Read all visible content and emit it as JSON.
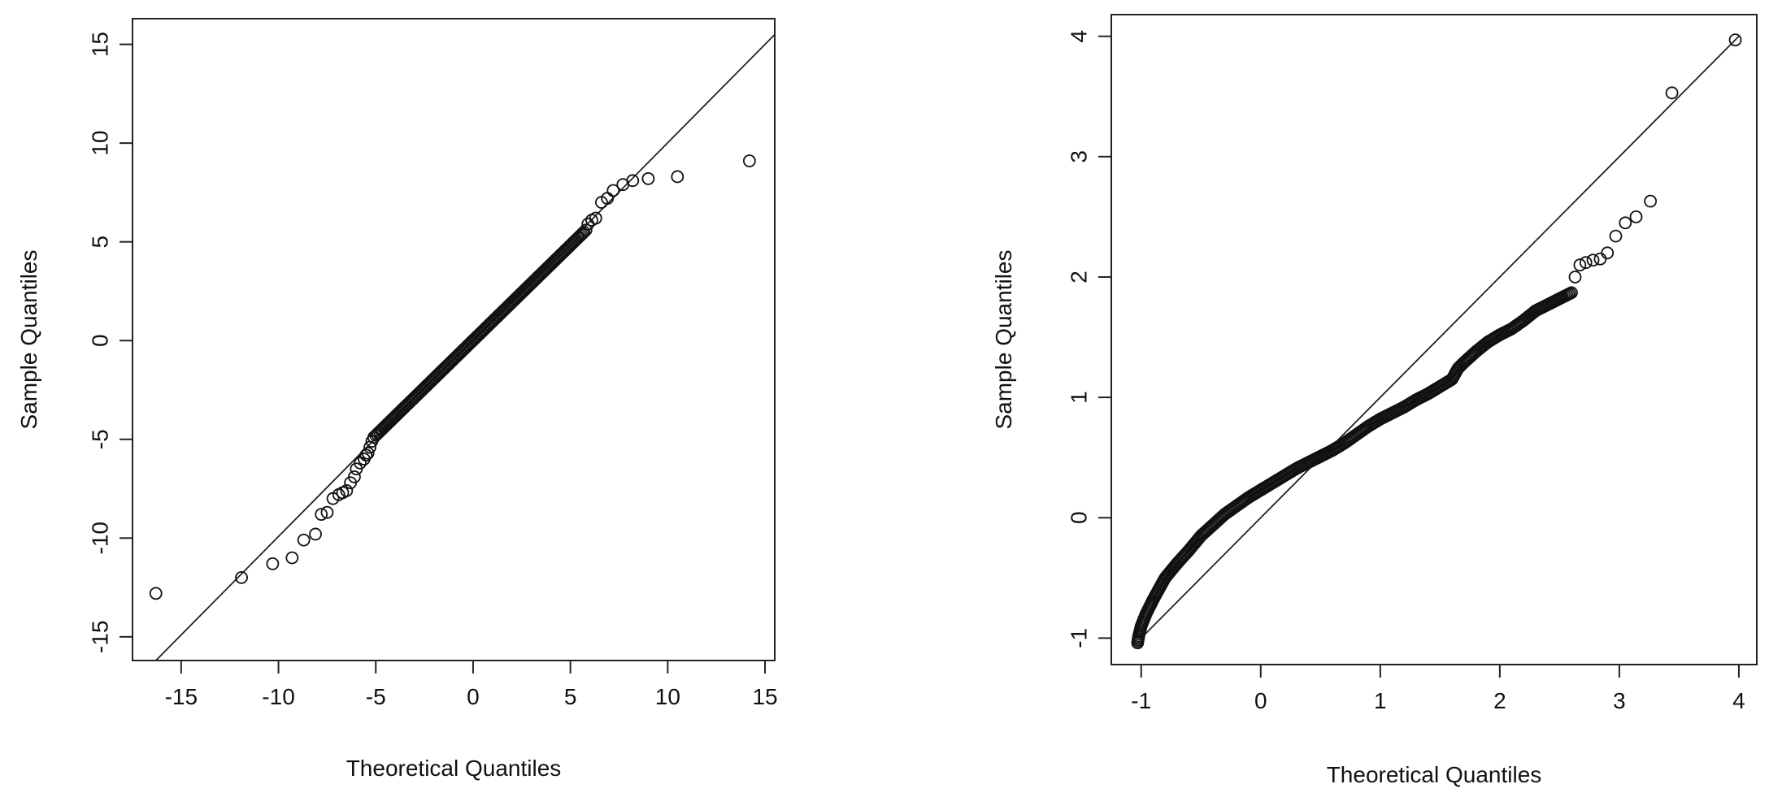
{
  "chart_data": [
    {
      "type": "scatter",
      "xlabel": "Theoretical Quantiles",
      "ylabel": "Sample Quantiles",
      "xlim": [
        -17.5,
        15.5
      ],
      "ylim": [
        -16.2,
        16.3
      ],
      "xticks": [
        -15,
        -10,
        -5,
        0,
        5,
        10,
        15
      ],
      "yticks": [
        -15,
        -10,
        -5,
        0,
        5,
        10,
        15
      ],
      "xtick_labels": [
        "-15",
        "-10",
        "-5",
        "0",
        "5",
        "10",
        "15"
      ],
      "ytick_labels": [
        "-15",
        "-10",
        "-5",
        "0",
        "5",
        "10",
        "15"
      ],
      "reference_line": {
        "x": [
          -16.3,
          15.5
        ],
        "y": [
          -16.2,
          15.5
        ]
      },
      "points": {
        "x": [
          -16.3,
          -11.9,
          -10.3,
          -9.3,
          -8.7,
          -8.1,
          -7.8,
          -7.5,
          -7.2,
          -6.9,
          -6.7,
          -6.5,
          -6.3,
          -6.1,
          -6.0,
          -5.8,
          -5.6,
          -5.5,
          -5.4,
          -5.3,
          -5.2,
          -5.1,
          5.8,
          5.9,
          6.1,
          6.3,
          6.6,
          6.9,
          7.2,
          7.7,
          8.2,
          9.0,
          10.5,
          14.2
        ],
        "y": [
          -12.8,
          -12.0,
          -11.3,
          -11.0,
          -10.1,
          -9.8,
          -8.8,
          -8.7,
          -8.0,
          -7.8,
          -7.7,
          -7.6,
          -7.2,
          -6.9,
          -6.5,
          -6.2,
          -6.0,
          -5.8,
          -5.7,
          -5.4,
          -5.1,
          -4.9,
          5.6,
          5.9,
          6.1,
          6.2,
          7.0,
          7.2,
          7.6,
          7.9,
          8.1,
          8.2,
          8.3,
          9.1
        ]
      },
      "dense_curve": {
        "x": [
          -5.0,
          5.7
        ],
        "y": [
          -4.8,
          5.5
        ]
      }
    },
    {
      "type": "scatter",
      "xlabel": "Theoretical Quantiles",
      "ylabel": "Sample Quantiles",
      "xlim": [
        -1.25,
        4.15
      ],
      "ylim": [
        -1.22,
        4.18
      ],
      "xticks": [
        -1,
        0,
        1,
        2,
        3,
        4
      ],
      "yticks": [
        -1,
        0,
        1,
        2,
        3,
        4
      ],
      "xtick_labels": [
        "-1",
        "0",
        "1",
        "2",
        "3",
        "4"
      ],
      "ytick_labels": [
        "-1",
        "0",
        "1",
        "2",
        "3",
        "4"
      ],
      "reference_line": {
        "x": [
          -1.0,
          4.0
        ],
        "y": [
          -1.0,
          4.0
        ]
      },
      "points": {
        "x": [
          2.63,
          2.67,
          2.72,
          2.78,
          2.84,
          2.9,
          2.97,
          3.05,
          3.14,
          3.26,
          3.44,
          3.97
        ],
        "y": [
          2.0,
          2.1,
          2.12,
          2.14,
          2.15,
          2.2,
          2.34,
          2.45,
          2.5,
          2.63,
          3.53,
          3.97
        ]
      },
      "dense_curve": {
        "x": [
          -1.03,
          -1.02,
          -1.0,
          -0.96,
          -0.9,
          -0.8,
          -0.7,
          -0.6,
          -0.5,
          -0.4,
          -0.3,
          -0.2,
          -0.1,
          0.0,
          0.1,
          0.2,
          0.3,
          0.4,
          0.5,
          0.6,
          0.7,
          0.8,
          0.9,
          1.0,
          1.1,
          1.2,
          1.3,
          1.4,
          1.5,
          1.6,
          1.65,
          1.7,
          1.8,
          1.9,
          2.0,
          2.1,
          2.2,
          2.3,
          2.4,
          2.5,
          2.6
        ],
        "y": [
          -1.04,
          -0.98,
          -0.9,
          -0.8,
          -0.68,
          -0.5,
          -0.38,
          -0.27,
          -0.15,
          -0.06,
          0.03,
          0.1,
          0.17,
          0.23,
          0.29,
          0.35,
          0.41,
          0.46,
          0.51,
          0.56,
          0.62,
          0.69,
          0.76,
          0.82,
          0.87,
          0.92,
          0.98,
          1.03,
          1.09,
          1.15,
          1.24,
          1.29,
          1.38,
          1.46,
          1.52,
          1.57,
          1.64,
          1.72,
          1.77,
          1.82,
          1.87
        ]
      }
    }
  ]
}
